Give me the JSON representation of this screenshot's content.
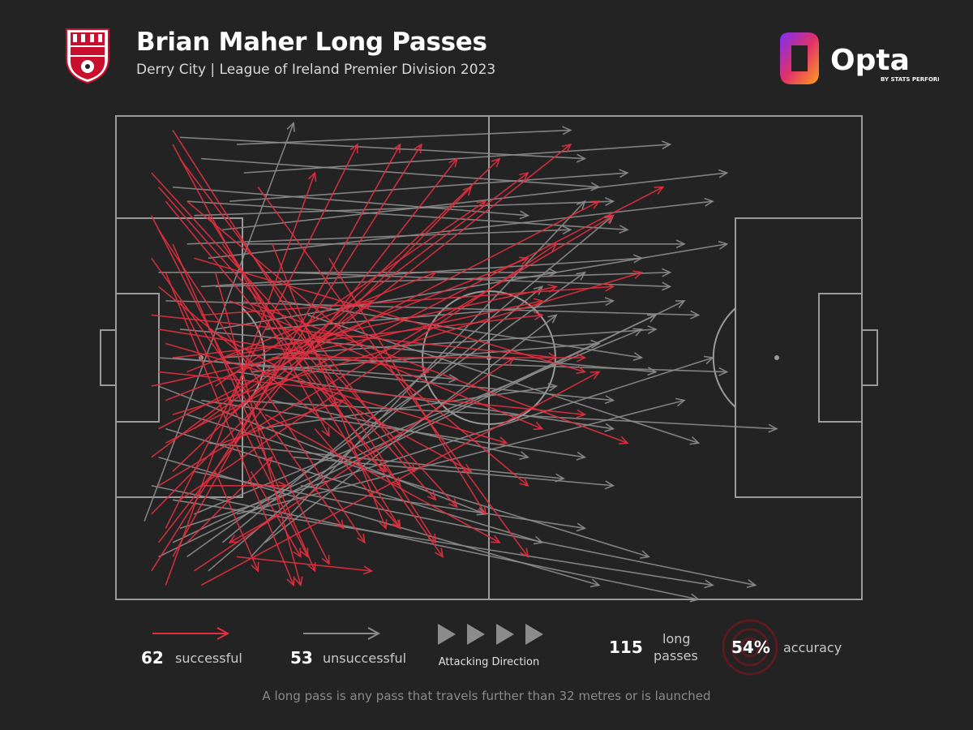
{
  "header": {
    "title": "Brian Maher Long Passes",
    "subtitle": "Derry City | League of Ireland Premier Division 2023",
    "club_crest_text": "DERRY CITY FOOTBALL CLUB 1928",
    "brand": "Opta",
    "brand_sub": "BY STATS PERFORM"
  },
  "colors": {
    "background": "#232323",
    "pitch_lines": "#9a9a9a",
    "successful": "#e0303f",
    "unsuccessful": "#8c8c8c",
    "accuracy_ring": "#5a1a1e"
  },
  "legend": {
    "successful_count": "62",
    "successful_label": "successful",
    "unsuccessful_count": "53",
    "unsuccessful_label": "unsuccessful",
    "direction_label": "Attacking Direction",
    "total_count": "115",
    "total_label_1": "long",
    "total_label_2": "passes",
    "accuracy_value": "54%",
    "accuracy_label": "accuracy"
  },
  "footnote": "A long pass is any pass that travels further than 32 metres or is launched",
  "chart_data": {
    "type": "pitch-pass-map",
    "pitch": {
      "length": 105,
      "width": 68,
      "attacking_direction": "left-to-right"
    },
    "series": [
      {
        "name": "successful",
        "count": 62,
        "color": "#e0303f",
        "passes": [
          [
            5,
            8,
            48,
            55
          ],
          [
            6,
            10,
            45,
            54
          ],
          [
            7,
            12,
            40,
            52
          ],
          [
            5,
            14,
            30,
            63
          ],
          [
            6,
            16,
            35,
            60
          ],
          [
            8,
            18,
            28,
            64
          ],
          [
            5,
            20,
            32,
            58
          ],
          [
            7,
            22,
            25,
            66
          ],
          [
            6,
            24,
            38,
            50
          ],
          [
            9,
            26,
            27,
            62
          ],
          [
            5,
            28,
            62,
            34
          ],
          [
            6,
            30,
            44,
            36
          ],
          [
            7,
            32,
            55,
            46
          ],
          [
            8,
            34,
            60,
            28
          ],
          [
            6,
            36,
            66,
            42
          ],
          [
            5,
            38,
            60,
            26
          ],
          [
            7,
            40,
            58,
            20
          ],
          [
            8,
            42,
            74,
            22
          ],
          [
            6,
            44,
            68,
            12
          ],
          [
            7,
            46,
            77,
            10
          ],
          [
            5,
            48,
            58,
            8
          ],
          [
            8,
            50,
            54,
            6
          ],
          [
            6,
            52,
            70,
            14
          ],
          [
            9,
            54,
            62,
            18
          ],
          [
            5,
            56,
            50,
            10
          ],
          [
            7,
            58,
            34,
            4
          ],
          [
            6,
            60,
            48,
            6
          ],
          [
            8,
            62,
            40,
            4
          ],
          [
            5,
            64,
            43,
            4
          ],
          [
            7,
            66,
            28,
            8
          ],
          [
            13,
            14,
            40,
            58
          ],
          [
            15,
            18,
            46,
            62
          ],
          [
            14,
            22,
            26,
            66
          ],
          [
            16,
            26,
            60,
            44
          ],
          [
            13,
            30,
            50,
            50
          ],
          [
            15,
            34,
            62,
            24
          ],
          [
            14,
            38,
            52,
            12
          ],
          [
            16,
            42,
            64,
            4
          ],
          [
            15,
            46,
            32,
            40
          ],
          [
            14,
            50,
            20,
            64
          ],
          [
            10,
            12,
            58,
            52
          ],
          [
            11,
            20,
            66,
            36
          ],
          [
            12,
            28,
            70,
            24
          ],
          [
            10,
            36,
            45,
            22
          ],
          [
            11,
            44,
            36,
            26
          ],
          [
            12,
            52,
            24,
            52
          ],
          [
            10,
            60,
            22,
            48
          ],
          [
            11,
            64,
            56,
            34
          ],
          [
            8,
            4,
            30,
            45
          ],
          [
            9,
            6,
            42,
            50
          ],
          [
            20,
            10,
            58,
            62
          ],
          [
            22,
            18,
            38,
            58
          ],
          [
            18,
            26,
            72,
            46
          ],
          [
            24,
            34,
            66,
            34
          ],
          [
            21,
            42,
            54,
            60
          ],
          [
            19,
            50,
            26,
            62
          ],
          [
            23,
            56,
            16,
            60
          ],
          [
            17,
            62,
            36,
            64
          ],
          [
            8,
            2,
            45,
            60
          ],
          [
            12,
            66,
            68,
            36
          ],
          [
            30,
            20,
            52,
            56
          ],
          [
            28,
            44,
            40,
            58
          ]
        ]
      },
      {
        "name": "unsuccessful",
        "count": 53,
        "color": "#8c8c8c",
        "passes": [
          [
            5,
            52,
            82,
            68
          ],
          [
            6,
            48,
            68,
            66
          ],
          [
            8,
            54,
            84,
            66
          ],
          [
            7,
            44,
            60,
            60
          ],
          [
            10,
            42,
            75,
            62
          ],
          [
            6,
            38,
            52,
            56
          ],
          [
            12,
            40,
            66,
            48
          ],
          [
            8,
            34,
            70,
            40
          ],
          [
            9,
            30,
            76,
            36
          ],
          [
            7,
            26,
            82,
            28
          ],
          [
            6,
            22,
            62,
            22
          ],
          [
            10,
            18,
            64,
            16
          ],
          [
            11,
            14,
            70,
            12
          ],
          [
            8,
            10,
            58,
            14
          ],
          [
            12,
            6,
            68,
            10
          ],
          [
            9,
            3,
            66,
            6
          ],
          [
            14,
            30,
            86,
            18
          ],
          [
            15,
            34,
            76,
            30
          ],
          [
            13,
            46,
            63,
            51
          ],
          [
            11,
            50,
            90,
            66
          ],
          [
            16,
            40,
            93,
            44
          ],
          [
            17,
            36,
            70,
            44
          ],
          [
            14,
            24,
            78,
            22
          ],
          [
            13,
            20,
            84,
            12
          ],
          [
            15,
            16,
            86,
            8
          ],
          [
            16,
            12,
            72,
            8
          ],
          [
            18,
            8,
            78,
            4
          ],
          [
            17,
            4,
            64,
            2
          ],
          [
            10,
            12,
            72,
            16
          ],
          [
            12,
            24,
            74,
            20
          ],
          [
            20,
            44,
            62,
            38
          ],
          [
            22,
            40,
            58,
            48
          ],
          [
            19,
            36,
            68,
            32
          ],
          [
            21,
            30,
            70,
            26
          ],
          [
            23,
            26,
            74,
            34
          ],
          [
            24,
            22,
            78,
            24
          ],
          [
            18,
            18,
            80,
            18
          ],
          [
            25,
            48,
            70,
            52
          ],
          [
            26,
            52,
            66,
            58
          ],
          [
            27,
            28,
            82,
            46
          ],
          [
            6,
            62,
            80,
            26
          ],
          [
            8,
            60,
            76,
            28
          ],
          [
            9,
            58,
            84,
            34
          ],
          [
            11,
            56,
            74,
            30
          ],
          [
            13,
            64,
            60,
            24
          ],
          [
            15,
            60,
            70,
            14
          ],
          [
            17,
            56,
            80,
            40
          ],
          [
            19,
            62,
            66,
            12
          ],
          [
            21,
            60,
            62,
            28
          ],
          [
            10,
            62,
            66,
            22
          ],
          [
            4,
            57,
            25,
            1
          ],
          [
            6,
            34,
            48,
            37
          ],
          [
            22,
            34,
            86,
            36
          ]
        ]
      }
    ]
  }
}
